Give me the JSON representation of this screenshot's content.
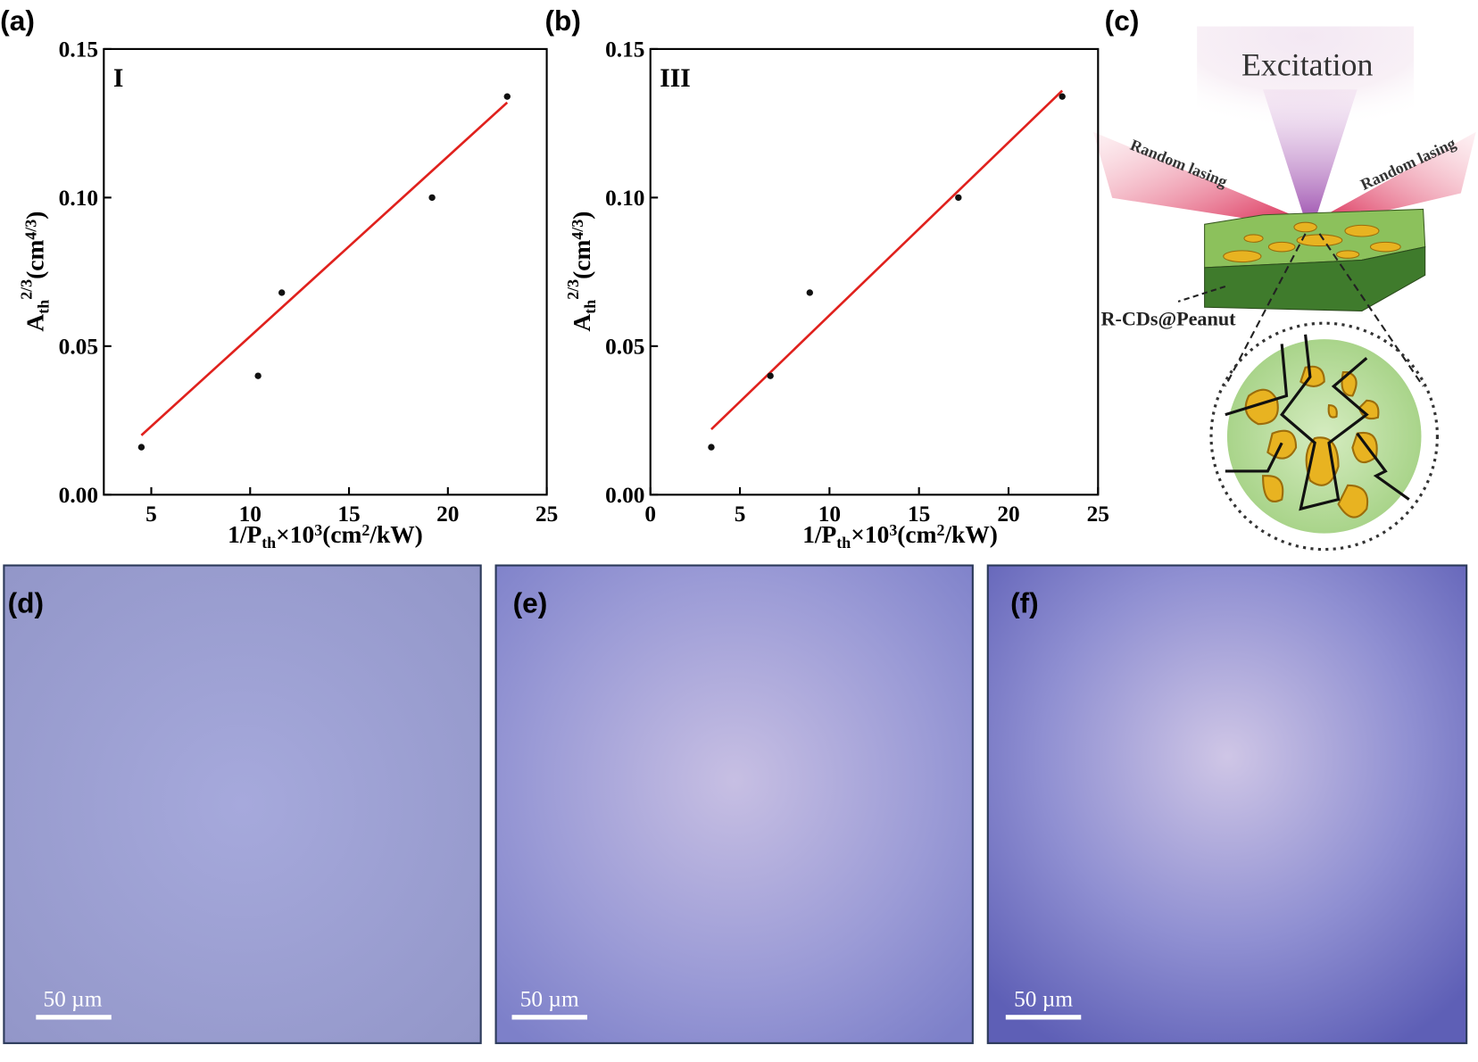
{
  "chart_data": [
    {
      "type": "scatter",
      "annotation": "I",
      "xlabel": [
        "1/P",
        "th",
        "×10",
        "3",
        "(cm",
        "2",
        "/kW)"
      ],
      "ylabel": [
        "A",
        "th",
        "2/3",
        "(cm",
        "4/3",
        ")"
      ],
      "x": [
        4.5,
        10.4,
        11.6,
        19.2,
        23.0
      ],
      "values": [
        0.016,
        0.04,
        0.068,
        0.1,
        0.134
      ],
      "color": "#111111",
      "fit": {
        "x": [
          4.5,
          23.0
        ],
        "values": [
          0.02,
          0.132
        ],
        "color": "#e0211d"
      },
      "xlim": [
        2.6,
        25
      ],
      "ylim": [
        0,
        0.15
      ],
      "xticks": [
        5,
        10,
        15,
        20,
        25
      ],
      "yticks": [
        {
          "value": 0,
          "label": "0.00"
        },
        {
          "value": 0.05,
          "label": "0.05"
        },
        {
          "value": 0.1,
          "label": "0.10"
        },
        {
          "value": 0.15,
          "label": "0.15"
        }
      ]
    },
    {
      "type": "scatter",
      "annotation": "III",
      "xlabel": [
        "1/P",
        "th",
        "×10",
        "3",
        "(cm",
        "2",
        "/kW)"
      ],
      "ylabel": [
        "A",
        "th",
        "2/3",
        "(cm",
        "4/3",
        ")"
      ],
      "x": [
        3.4,
        6.7,
        8.9,
        17.2,
        23.0
      ],
      "values": [
        0.016,
        0.04,
        0.068,
        0.1,
        0.134
      ],
      "color": "#111111",
      "fit": {
        "x": [
          3.4,
          23.0
        ],
        "values": [
          0.022,
          0.136
        ],
        "color": "#e0211d"
      },
      "xlim": [
        0,
        25
      ],
      "ylim": [
        0,
        0.15
      ],
      "xticks": [
        0,
        5,
        10,
        15,
        20,
        25
      ],
      "yticks": [
        {
          "value": 0,
          "label": "0.00"
        },
        {
          "value": 0.05,
          "label": "0.05"
        },
        {
          "value": 0.1,
          "label": "0.10"
        },
        {
          "value": 0.15,
          "label": "0.15"
        }
      ]
    }
  ],
  "panels": [
    "(a)",
    "(b)",
    "(c)",
    "(d)",
    "(e)",
    "(f)"
  ],
  "diagram": {
    "excitation": "Excitation",
    "beam_left": "Random lasing",
    "beam_right": "Random lasing",
    "sample": "R-CDs@Peanut"
  },
  "scale_bar": "50 µm"
}
